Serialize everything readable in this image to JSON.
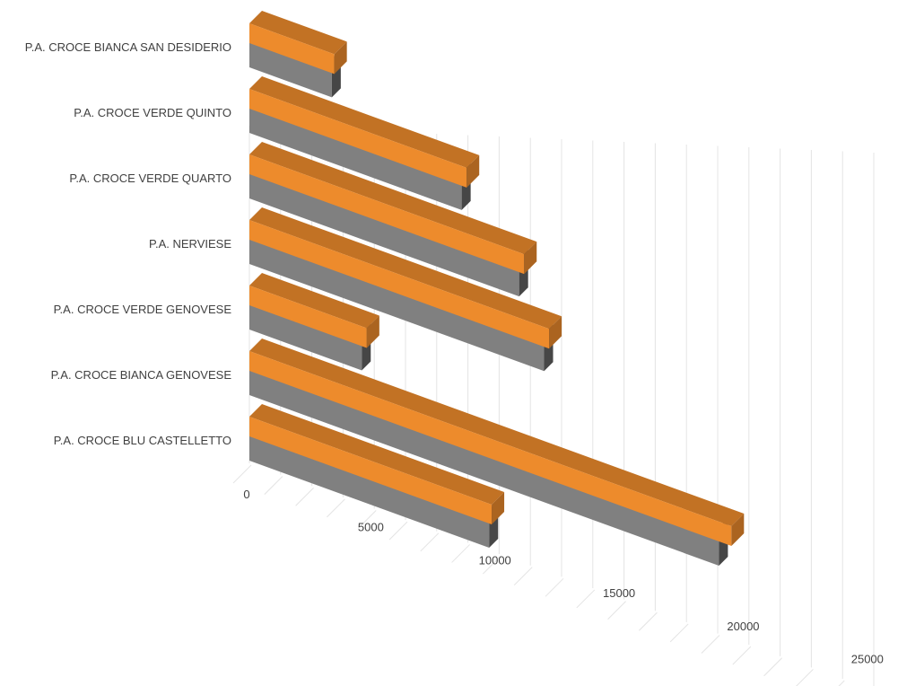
{
  "chart_data": {
    "type": "bar",
    "orientation": "horizontal",
    "style": "3d",
    "categories": [
      "P.A. CROCE BIANCA SAN DESIDERIO",
      "P.A. CROCE VERDE QUINTO",
      "P.A. CROCE VERDE QUARTO",
      "P.A. NERVIESE",
      "P.A. CROCE VERDE GENOVESE",
      "P.A. CROCE BIANCA GENOVESE",
      "P.A. CROCE BLU CASTELLETTO"
    ],
    "series": [
      {
        "color": "#808080",
        "values": [
          3300,
          8500,
          10800,
          11800,
          4500,
          18800,
          9600
        ]
      },
      {
        "color": "#ED8B2C",
        "values": [
          3400,
          8700,
          11000,
          12000,
          4700,
          19300,
          9700
        ]
      }
    ],
    "ticks": [
      "0",
      "5000",
      "10000",
      "15000",
      "20000",
      "25000"
    ],
    "xlim": [
      0,
      25000
    ],
    "title": "",
    "xlabel": "",
    "ylabel": "",
    "grid": true,
    "legend": "none"
  }
}
